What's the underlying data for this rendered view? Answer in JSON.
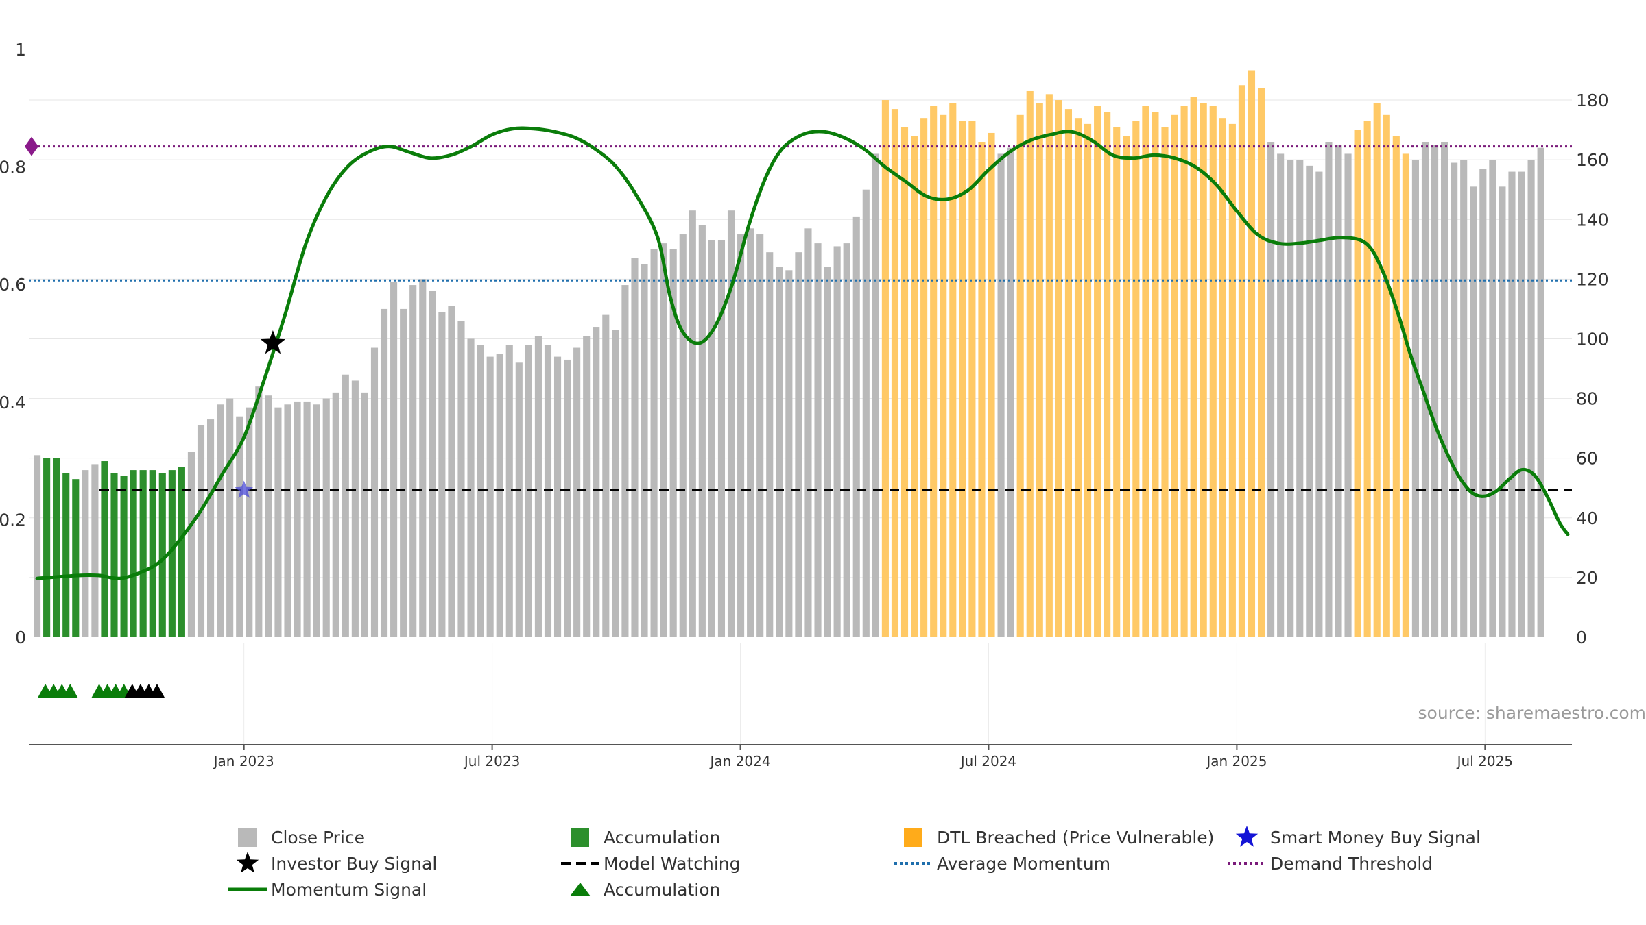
{
  "chart_data": {
    "type": "bar+line",
    "source": "source: sharemaestro.com",
    "left_axis": {
      "ticks": [
        "0",
        "0.2",
        "0.4",
        "0.6",
        "0.8",
        "1"
      ],
      "ylim": [
        0,
        1
      ]
    },
    "right_axis": {
      "ticks": [
        "0",
        "20",
        "40",
        "60",
        "80",
        "100",
        "120",
        "140",
        "160",
        "180"
      ],
      "ylim": [
        0,
        197
      ]
    },
    "x_axis": {
      "range_months": [
        -5.2,
        32.1
      ],
      "ticks": [
        {
          "label": "Jan 2023",
          "month": 0
        },
        {
          "label": "Jul 2023",
          "month": 6
        },
        {
          "label": "Jan 2024",
          "month": 12
        },
        {
          "label": "Jul 2024",
          "month": 18
        },
        {
          "label": "Jan 2025",
          "month": 24
        },
        {
          "label": "Jul 2025",
          "month": 30
        }
      ]
    },
    "bars": {
      "start_month": -5.0,
      "step_month": 0.233,
      "close_price": [
        61,
        60,
        60,
        55,
        53,
        56,
        58,
        59,
        55,
        54,
        56,
        56,
        56,
        55,
        56,
        57,
        62,
        71,
        73,
        78,
        80,
        74,
        77,
        84,
        81,
        77,
        78,
        79,
        79,
        78,
        80,
        82,
        88,
        86,
        82,
        97,
        110,
        119,
        110,
        118,
        120,
        116,
        109,
        111,
        106,
        100,
        98,
        94,
        95,
        98,
        92,
        98,
        101,
        98,
        94,
        93,
        97,
        101,
        104,
        108,
        103,
        118,
        127,
        125,
        130,
        132,
        130,
        135,
        143,
        138,
        133,
        133,
        143,
        135,
        137,
        135,
        129,
        124,
        123,
        129,
        137,
        132,
        124,
        131,
        132,
        141,
        150,
        162,
        180,
        177,
        171,
        168,
        174,
        178,
        175,
        179,
        173,
        173,
        166,
        169,
        162,
        164,
        175,
        183,
        179,
        182,
        180,
        177,
        174,
        172,
        178,
        176,
        171,
        168,
        173,
        178,
        176,
        171,
        175,
        178,
        181,
        179,
        178,
        174,
        172,
        185,
        190,
        184,
        166,
        162,
        160,
        160,
        158,
        156,
        166,
        165,
        162,
        170,
        173,
        179,
        175,
        168,
        162,
        160,
        166,
        165,
        166,
        159,
        160,
        151,
        157,
        160,
        151,
        156,
        156,
        160,
        164
      ],
      "colors": [
        "g",
        "a",
        "a",
        "a",
        "a",
        "g",
        "g",
        "a",
        "a",
        "a",
        "a",
        "a",
        "a",
        "a",
        "a",
        "a",
        "g",
        "g",
        "g",
        "g",
        "g",
        "g",
        "g",
        "g",
        "g",
        "g",
        "g",
        "g",
        "g",
        "g",
        "g",
        "g",
        "g",
        "g",
        "g",
        "g",
        "g",
        "g",
        "g",
        "g",
        "g",
        "g",
        "g",
        "g",
        "g",
        "g",
        "g",
        "g",
        "g",
        "g",
        "g",
        "g",
        "g",
        "g",
        "g",
        "g",
        "g",
        "g",
        "g",
        "g",
        "g",
        "g",
        "g",
        "g",
        "g",
        "g",
        "g",
        "g",
        "g",
        "g",
        "g",
        "g",
        "g",
        "g",
        "g",
        "g",
        "g",
        "g",
        "g",
        "g",
        "g",
        "g",
        "g",
        "g",
        "g",
        "g",
        "g",
        "g",
        "o",
        "o",
        "o",
        "o",
        "o",
        "o",
        "o",
        "o",
        "o",
        "o",
        "o",
        "o",
        "g",
        "g",
        "o",
        "o",
        "o",
        "o",
        "o",
        "o",
        "o",
        "o",
        "o",
        "o",
        "o",
        "o",
        "o",
        "o",
        "o",
        "o",
        "o",
        "o",
        "o",
        "o",
        "o",
        "o",
        "o",
        "o",
        "o",
        "o",
        "g",
        "g",
        "g",
        "g",
        "g",
        "g",
        "g",
        "g",
        "g",
        "o",
        "o",
        "o",
        "o",
        "o",
        "o",
        "g",
        "g",
        "g",
        "g",
        "g",
        "g",
        "g",
        "g",
        "g",
        "g",
        "g",
        "g",
        "g",
        "g"
      ]
    },
    "momentum_signal": [
      [
        -5.0,
        0.1
      ],
      [
        -4.0,
        0.105
      ],
      [
        -3.5,
        0.105
      ],
      [
        -3.0,
        0.1
      ],
      [
        -2.5,
        0.11
      ],
      [
        -2.0,
        0.13
      ],
      [
        -1.5,
        0.17
      ],
      [
        -1.0,
        0.22
      ],
      [
        -0.5,
        0.28
      ],
      [
        0,
        0.34
      ],
      [
        0.5,
        0.44
      ],
      [
        1.0,
        0.55
      ],
      [
        1.5,
        0.67
      ],
      [
        2.0,
        0.75
      ],
      [
        2.5,
        0.8
      ],
      [
        3.0,
        0.825
      ],
      [
        3.5,
        0.835
      ],
      [
        4.0,
        0.825
      ],
      [
        4.5,
        0.815
      ],
      [
        5.0,
        0.82
      ],
      [
        5.5,
        0.835
      ],
      [
        6.0,
        0.855
      ],
      [
        6.5,
        0.865
      ],
      [
        7.0,
        0.865
      ],
      [
        7.5,
        0.86
      ],
      [
        8.0,
        0.85
      ],
      [
        8.5,
        0.83
      ],
      [
        9.0,
        0.8
      ],
      [
        9.5,
        0.75
      ],
      [
        10.0,
        0.68
      ],
      [
        10.3,
        0.58
      ],
      [
        10.6,
        0.52
      ],
      [
        11.0,
        0.5
      ],
      [
        11.4,
        0.53
      ],
      [
        11.8,
        0.6
      ],
      [
        12.2,
        0.7
      ],
      [
        12.6,
        0.78
      ],
      [
        13.0,
        0.83
      ],
      [
        13.5,
        0.855
      ],
      [
        14.0,
        0.86
      ],
      [
        14.5,
        0.85
      ],
      [
        15.0,
        0.83
      ],
      [
        15.5,
        0.8
      ],
      [
        16.0,
        0.775
      ],
      [
        16.5,
        0.75
      ],
      [
        17.0,
        0.745
      ],
      [
        17.5,
        0.76
      ],
      [
        18.0,
        0.795
      ],
      [
        18.5,
        0.825
      ],
      [
        19.0,
        0.845
      ],
      [
        19.5,
        0.855
      ],
      [
        20.0,
        0.86
      ],
      [
        20.5,
        0.845
      ],
      [
        21.0,
        0.82
      ],
      [
        21.5,
        0.815
      ],
      [
        22.0,
        0.82
      ],
      [
        22.5,
        0.815
      ],
      [
        23.0,
        0.8
      ],
      [
        23.5,
        0.77
      ],
      [
        24.0,
        0.725
      ],
      [
        24.5,
        0.685
      ],
      [
        25.0,
        0.67
      ],
      [
        25.5,
        0.67
      ],
      [
        26.0,
        0.675
      ],
      [
        26.5,
        0.68
      ],
      [
        27.0,
        0.675
      ],
      [
        27.3,
        0.655
      ],
      [
        27.6,
        0.61
      ],
      [
        27.9,
        0.55
      ],
      [
        28.2,
        0.48
      ],
      [
        28.5,
        0.42
      ],
      [
        28.8,
        0.36
      ],
      [
        29.1,
        0.31
      ],
      [
        29.4,
        0.27
      ],
      [
        29.7,
        0.245
      ],
      [
        30.0,
        0.24
      ],
      [
        30.3,
        0.25
      ],
      [
        30.6,
        0.27
      ],
      [
        30.9,
        0.285
      ],
      [
        31.2,
        0.275
      ],
      [
        31.5,
        0.24
      ],
      [
        31.8,
        0.195
      ],
      [
        32.0,
        0.175
      ]
    ],
    "model_watching": 0.25,
    "average_momentum": 0.607,
    "demand_threshold": 0.835,
    "investor_buy_signal": {
      "month": 0.7,
      "value": 0.5
    },
    "smart_money_buy_signal": {
      "month": 0.0,
      "value": 0.25
    },
    "accumulation_markers": {
      "green_months": [
        -4.8,
        -4.6,
        -4.4,
        -4.2,
        -3.5,
        -3.3,
        -3.1,
        -2.9
      ],
      "black_months": [
        -2.7,
        -2.5,
        -2.3,
        -2.1
      ]
    },
    "colors": {
      "close_price": "#b9b9b9",
      "accumulation": "#2c8f2c",
      "dtl_breached": "#ffc966",
      "momentum": "#0a7d0a",
      "model_watching": "#000000",
      "average_momentum": "#1f6fad",
      "demand_threshold": "#7a1a7a",
      "smart_money": "#1414d6"
    },
    "legend": [
      {
        "label": "Close Price",
        "symbol": "grey-square"
      },
      {
        "label": "Accumulation",
        "symbol": "green-square"
      },
      {
        "label": "DTL Breached (Price Vulnerable)",
        "symbol": "orange-square"
      },
      {
        "label": "Smart Money Buy Signal",
        "symbol": "blue-star"
      },
      {
        "label": "Investor Buy Signal",
        "symbol": "black-star"
      },
      {
        "label": "Model Watching",
        "symbol": "black-dashed-line"
      },
      {
        "label": "Average Momentum",
        "symbol": "blue-dotted-line"
      },
      {
        "label": "Demand Threshold",
        "symbol": "purple-dotted-line"
      },
      {
        "label": "Momentum Signal",
        "symbol": "green-line"
      },
      {
        "label": "Accumulation",
        "symbol": "green-triangle"
      }
    ]
  }
}
